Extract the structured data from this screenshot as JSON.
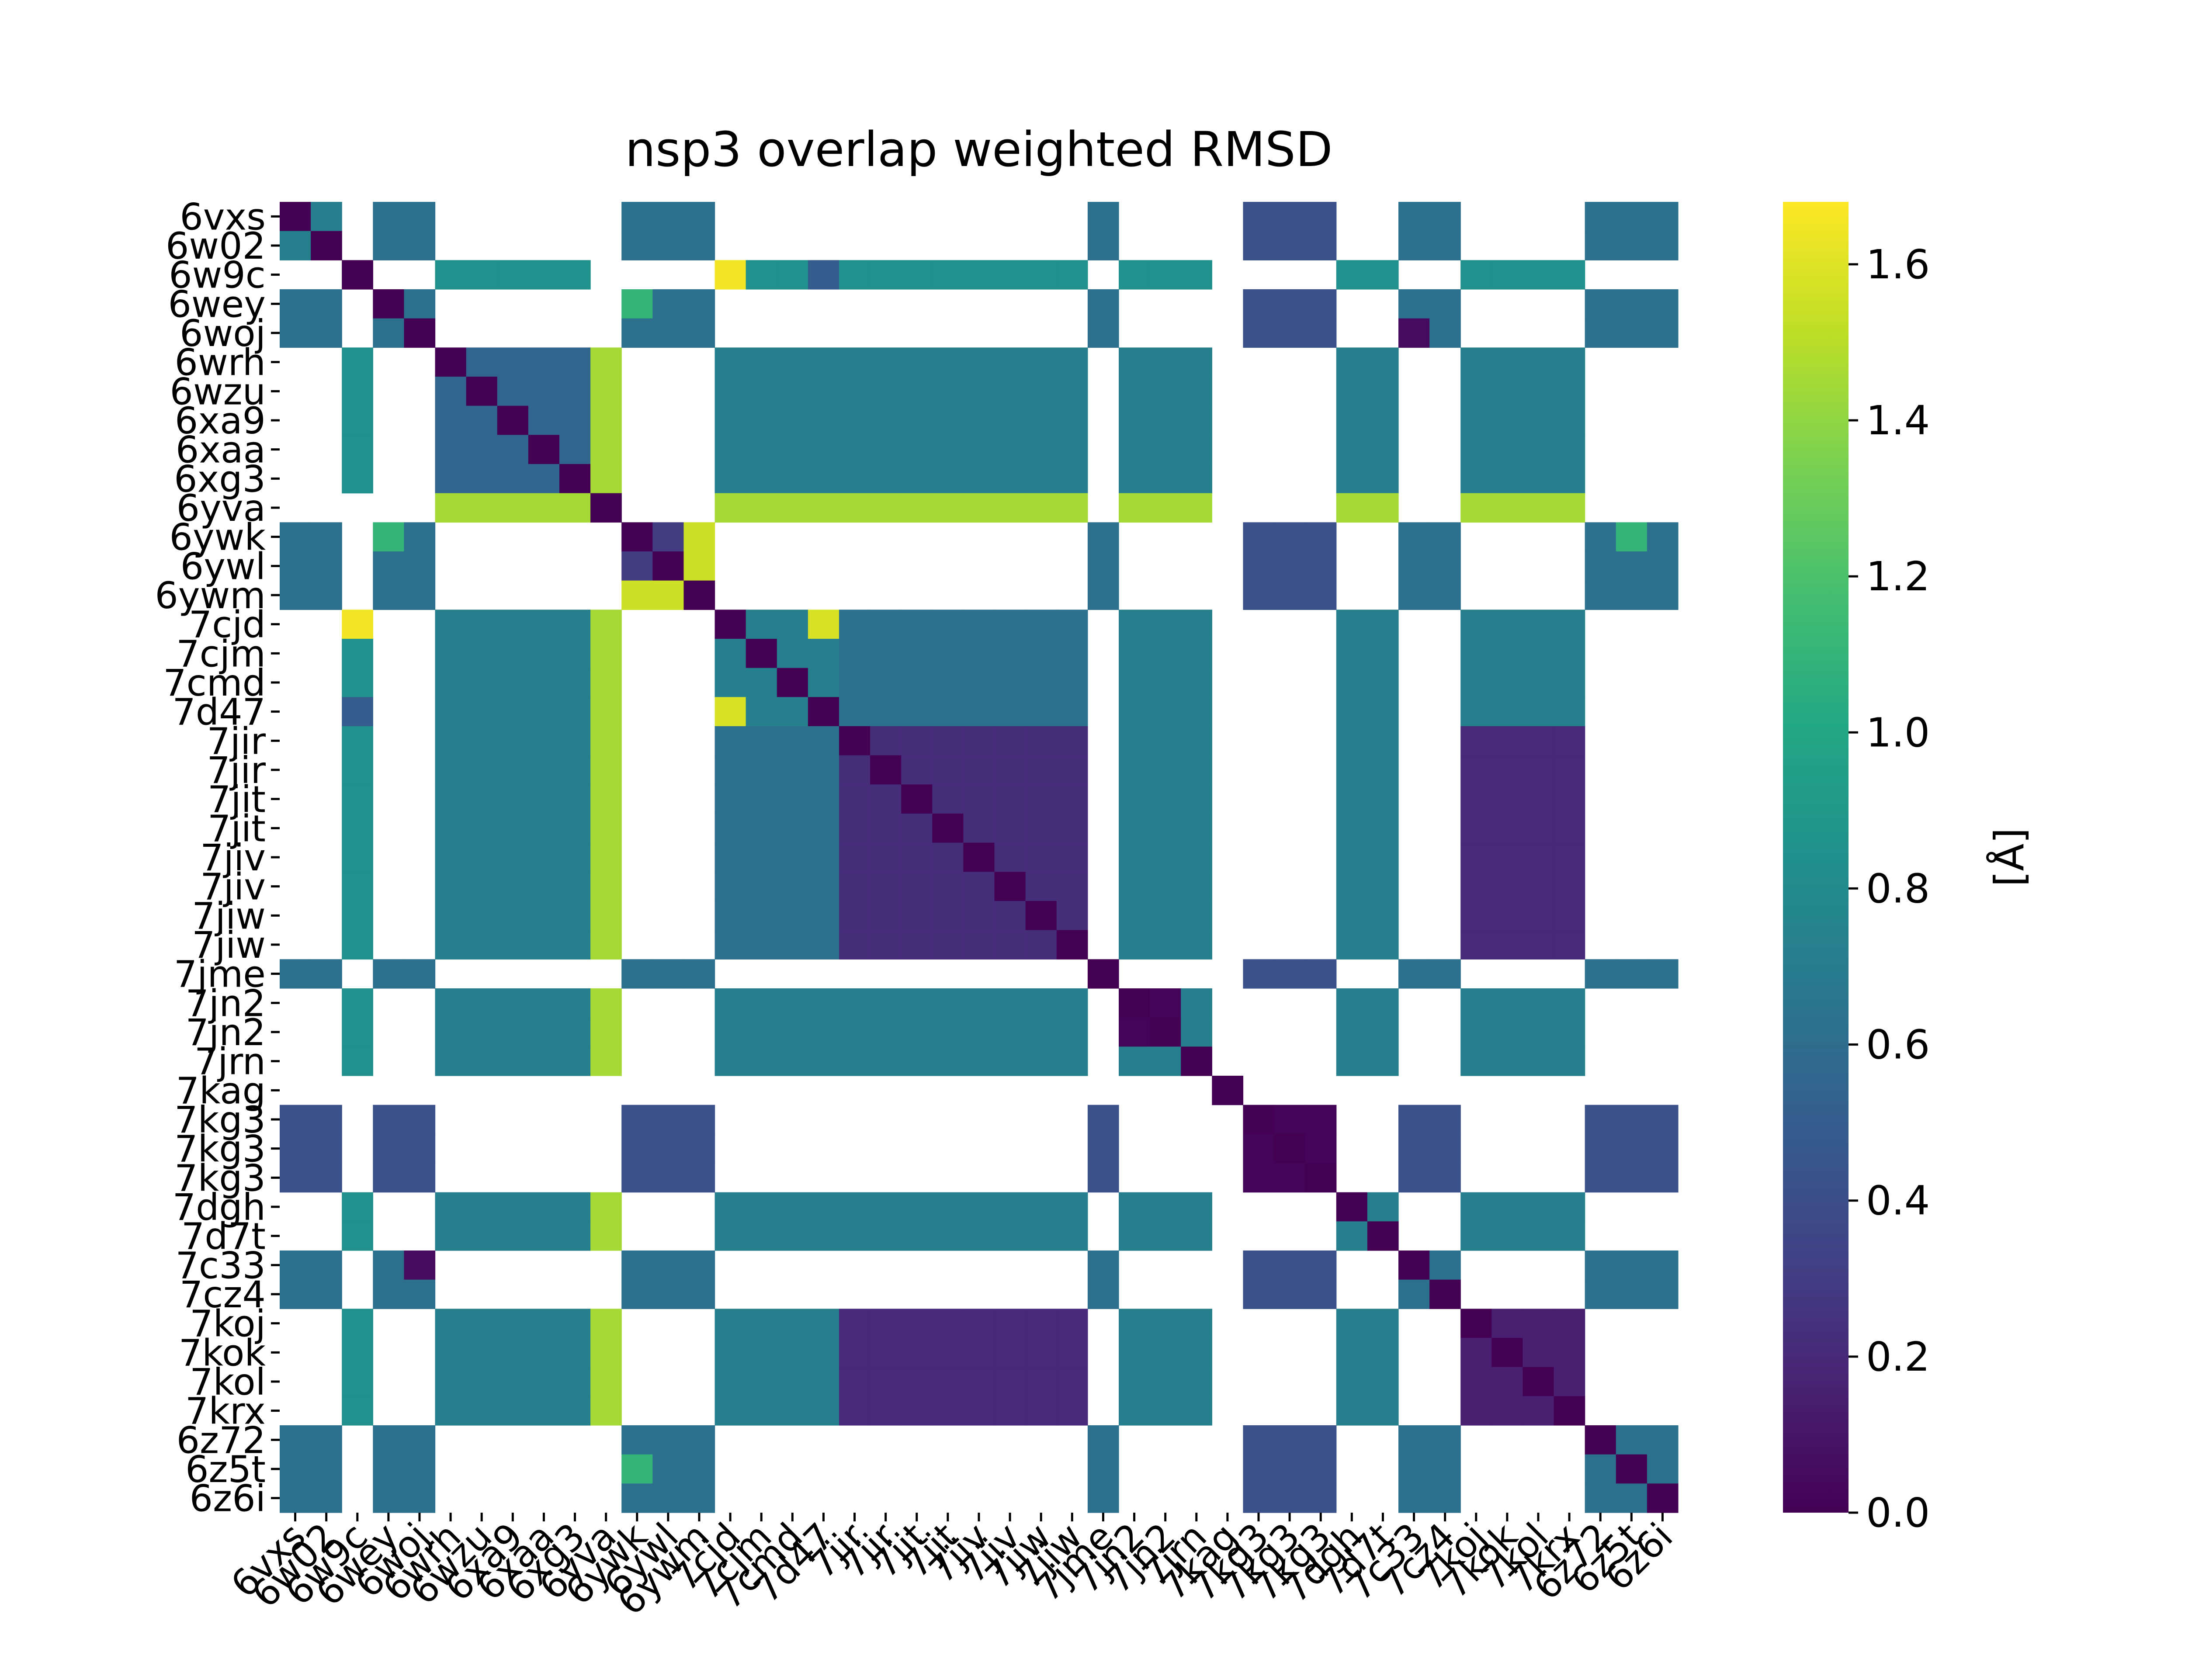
{
  "chart_data": {
    "type": "heatmap",
    "title": "nsp3 overlap weighted RMSD",
    "labels": [
      "6vxs",
      "6w02",
      "6w9c",
      "6wey",
      "6woj",
      "6wrh",
      "6wzu",
      "6xa9",
      "6xaa",
      "6xg3",
      "6yva",
      "6ywk",
      "6ywl",
      "6ywm",
      "7cjd",
      "7cjm",
      "7cmd",
      "7d47",
      "7jir",
      "7jir",
      "7jit",
      "7jit",
      "7jiv",
      "7jiv",
      "7jiw",
      "7jiw",
      "7jme",
      "7jn2",
      "7jn2",
      "7jrn",
      "7kag",
      "7kg3",
      "7kg3",
      "7kg3",
      "7dgh",
      "7d7t",
      "7c33",
      "7cz4",
      "7koj",
      "7kok",
      "7kol",
      "7krx",
      "6z72",
      "6z5t",
      "6z6i"
    ],
    "colorbar": {
      "label": "[Å]",
      "min": 0.0,
      "max": 1.68,
      "ticks": [
        "0.0",
        "0.2",
        "0.4",
        "0.6",
        "0.8",
        "1.0",
        "1.2",
        "1.4",
        "1.6"
      ],
      "tick_values": [
        0.0,
        0.2,
        0.4,
        0.6,
        0.8,
        1.0,
        1.2,
        1.4,
        1.6
      ],
      "colormap": "viridis"
    },
    "missing_value_color": "#ffffff",
    "groups": {
      "A": [
        0,
        1,
        3,
        4,
        11,
        12,
        13,
        26,
        31,
        32,
        33,
        36,
        37,
        42,
        43,
        44
      ],
      "B": [
        5,
        6,
        7,
        8,
        9,
        14,
        15,
        16,
        17,
        18,
        19,
        20,
        21,
        22,
        23,
        24,
        25,
        27,
        28,
        29,
        34,
        35,
        38,
        39,
        40,
        41
      ],
      "W": [
        2
      ],
      "Y": [
        10
      ],
      "K": [
        30
      ]
    },
    "default_values": {
      "AA": 0.62,
      "BB": 0.72,
      "WB": 0.85,
      "YB": 1.45
    },
    "blocks": [
      {
        "rows": [
          18,
          19,
          20,
          21,
          22,
          23,
          24,
          25
        ],
        "cols": [
          18,
          19,
          20,
          21,
          22,
          23,
          24,
          25
        ],
        "value": 0.22
      },
      {
        "rows": [
          18,
          19,
          20,
          21,
          22,
          23,
          24,
          25
        ],
        "cols": [
          38,
          39,
          40,
          41
        ],
        "value": 0.2
      },
      {
        "rows": [
          38,
          39,
          40,
          41
        ],
        "cols": [
          18,
          19,
          20,
          21,
          22,
          23,
          24,
          25
        ],
        "value": 0.2
      },
      {
        "rows": [
          38,
          39,
          40,
          41
        ],
        "cols": [
          38,
          39,
          40,
          41
        ],
        "value": 0.15
      },
      {
        "rows": [
          18,
          19,
          20,
          21,
          22,
          23,
          24,
          25
        ],
        "cols": [
          14,
          15,
          16,
          17
        ],
        "value": 0.62
      },
      {
        "rows": [
          14,
          15,
          16,
          17
        ],
        "cols": [
          18,
          19,
          20,
          21,
          22,
          23,
          24,
          25
        ],
        "value": 0.62
      },
      {
        "rows": [
          31,
          32,
          33
        ],
        "cols": [
          31,
          32,
          33
        ],
        "value": 0.02
      },
      {
        "rows": [
          5,
          6,
          7,
          8,
          9
        ],
        "cols": [
          5,
          6,
          7,
          8,
          9
        ],
        "value": 0.55
      },
      {
        "rows": [
          27,
          28
        ],
        "cols": [
          27,
          28
        ],
        "value": 0.02
      },
      {
        "rows": [
          0,
          1,
          3,
          4,
          11,
          12,
          13,
          26,
          36,
          37,
          42,
          43,
          44
        ],
        "cols": [
          31,
          32,
          33
        ],
        "value": 0.42
      },
      {
        "rows": [
          31,
          32,
          33
        ],
        "cols": [
          0,
          1,
          3,
          4,
          11,
          12,
          13,
          26,
          36,
          37,
          42,
          43,
          44
        ],
        "value": 0.42
      }
    ],
    "cells": [
      {
        "r": 2,
        "c": 14,
        "v": 1.65
      },
      {
        "r": 14,
        "c": 2,
        "v": 1.65
      },
      {
        "r": 2,
        "c": 17,
        "v": 0.5
      },
      {
        "r": 17,
        "c": 2,
        "v": 0.5
      },
      {
        "r": 11,
        "c": 13,
        "v": 1.55
      },
      {
        "r": 13,
        "c": 11,
        "v": 1.55
      },
      {
        "r": 12,
        "c": 13,
        "v": 1.55
      },
      {
        "r": 13,
        "c": 12,
        "v": 1.55
      },
      {
        "r": 11,
        "c": 12,
        "v": 0.3
      },
      {
        "r": 12,
        "c": 11,
        "v": 0.3
      },
      {
        "r": 4,
        "c": 36,
        "v": 0.05
      },
      {
        "r": 36,
        "c": 4,
        "v": 0.05
      },
      {
        "r": 3,
        "c": 11,
        "v": 1.1
      },
      {
        "r": 11,
        "c": 3,
        "v": 1.1
      },
      {
        "r": 11,
        "c": 43,
        "v": 1.1
      },
      {
        "r": 43,
        "c": 11,
        "v": 1.1
      },
      {
        "r": 14,
        "c": 17,
        "v": 1.58
      },
      {
        "r": 17,
        "c": 14,
        "v": 1.58
      },
      {
        "r": 0,
        "c": 1,
        "v": 0.72
      },
      {
        "r": 1,
        "c": 0,
        "v": 0.72
      }
    ]
  }
}
